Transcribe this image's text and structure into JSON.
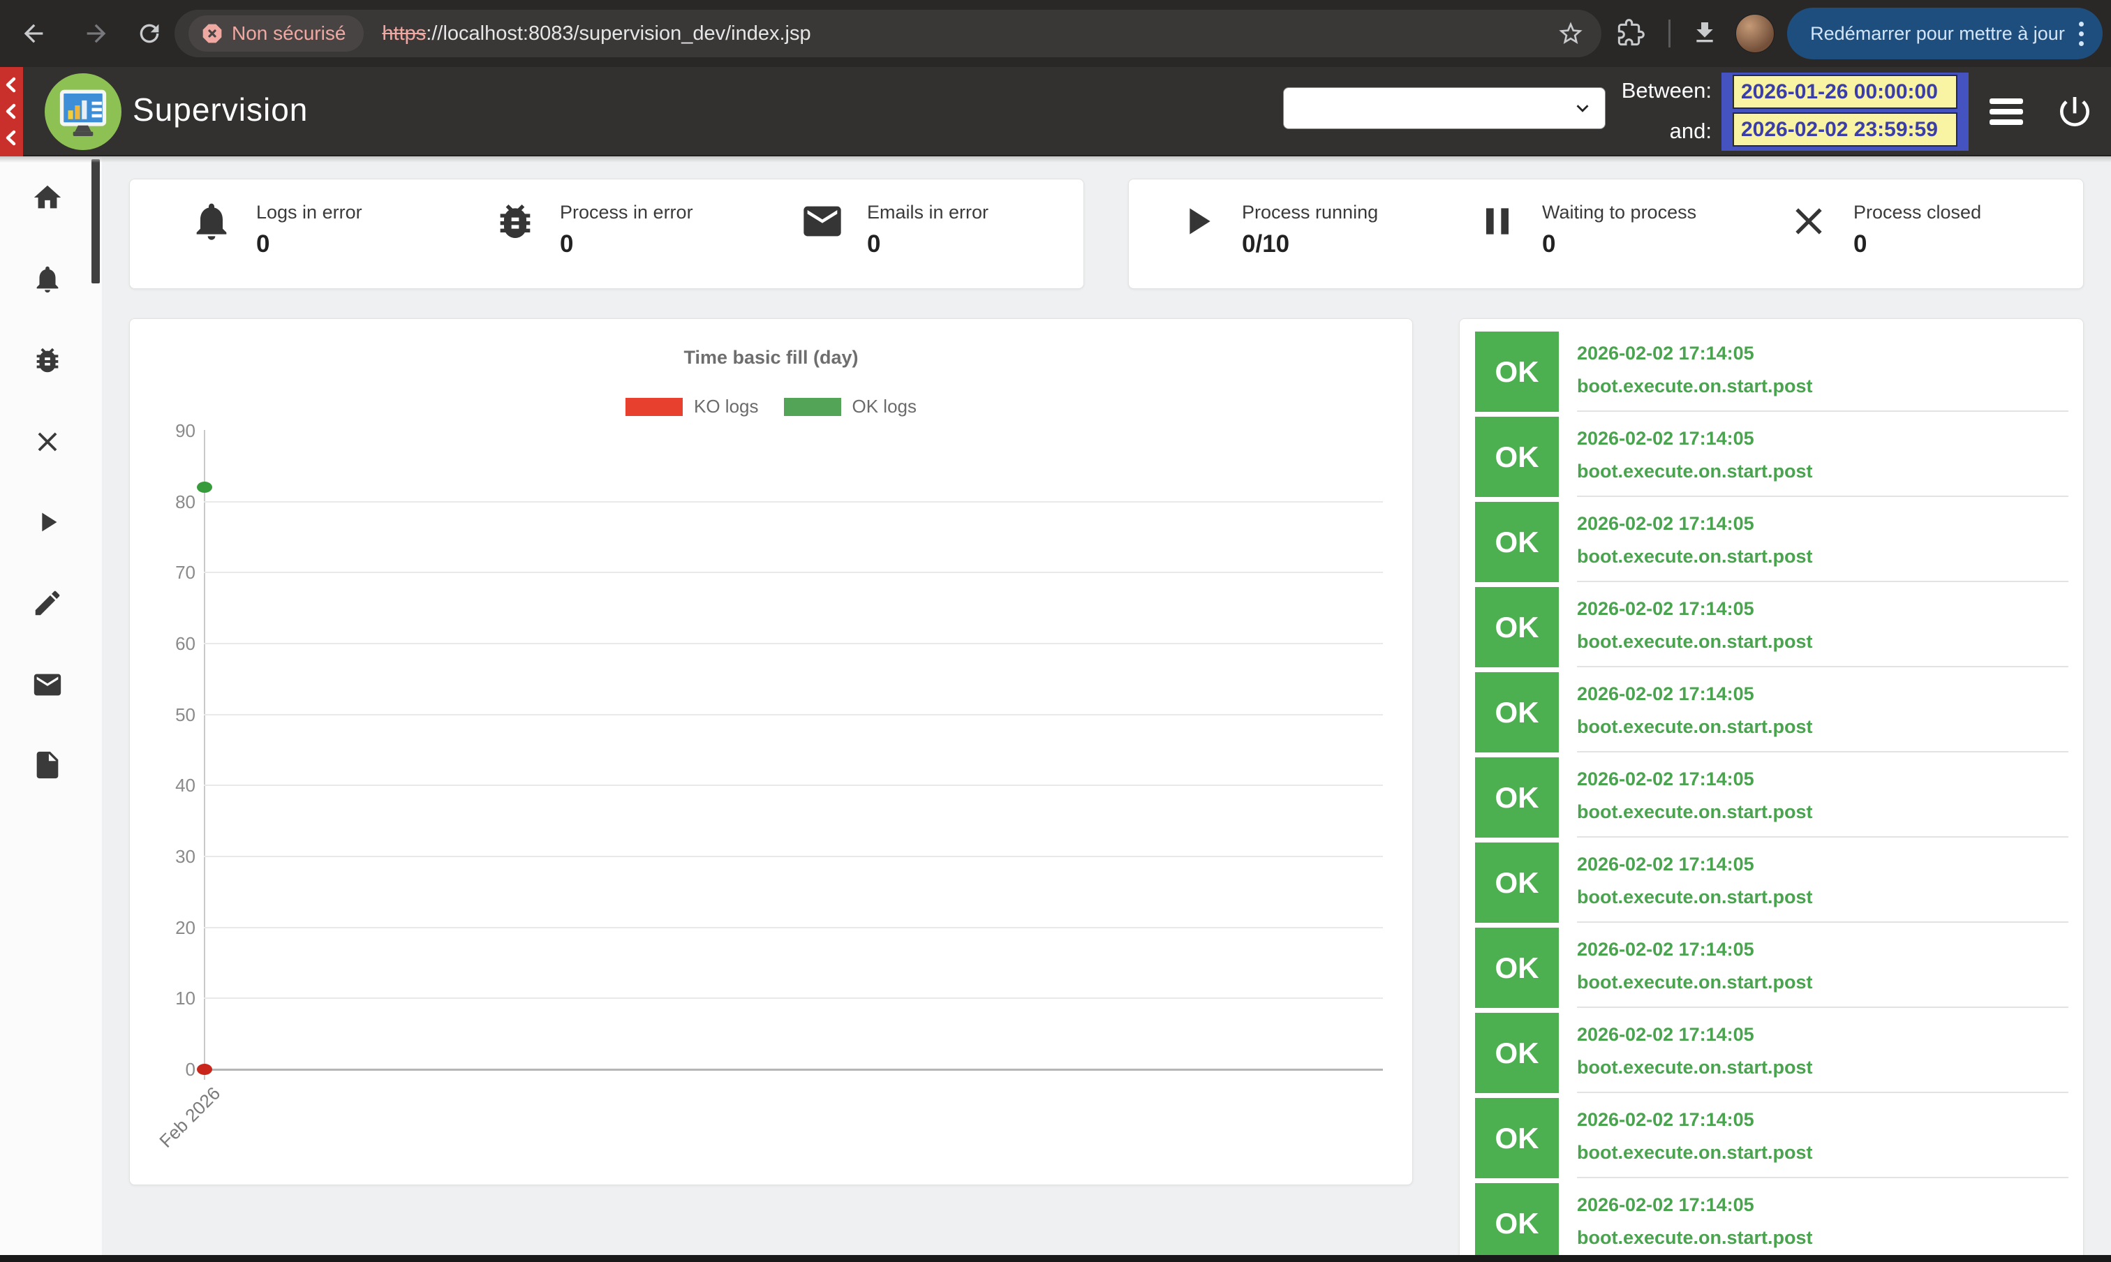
{
  "browser": {
    "security_label": "Non sécurisé",
    "url_scheme": "https",
    "url_rest": "://localhost:8083/supervision_dev/index.jsp",
    "update_button": "Redémarrer pour mettre à jour"
  },
  "header": {
    "title": "Supervision",
    "select_value": "",
    "between_label": "Between:",
    "and_label": "and:",
    "date_from": "2026-01-26 00:00:00",
    "date_to": "2026-02-02 23:59:59"
  },
  "sidebar": {
    "items": [
      {
        "name": "home",
        "icon": "home-icon"
      },
      {
        "name": "alerts",
        "icon": "bell-icon"
      },
      {
        "name": "errors",
        "icon": "bug-icon"
      },
      {
        "name": "closed",
        "icon": "close-icon"
      },
      {
        "name": "running",
        "icon": "play-icon"
      },
      {
        "name": "edit",
        "icon": "pencil-icon"
      },
      {
        "name": "emails",
        "icon": "envelope-icon"
      },
      {
        "name": "documents",
        "icon": "file-icon"
      }
    ]
  },
  "stat_cards": {
    "left": {
      "stats": [
        {
          "icon": "bell-icon",
          "label": "Logs in error",
          "value": "0"
        },
        {
          "icon": "bug-icon",
          "label": "Process in error",
          "value": "0"
        },
        {
          "icon": "envelope-icon",
          "label": "Emails in error",
          "value": "0"
        }
      ]
    },
    "right": {
      "stats": [
        {
          "icon": "play-icon",
          "label": "Process running",
          "value": "0/10"
        },
        {
          "icon": "pause-icon",
          "label": "Waiting to process",
          "value": "0"
        },
        {
          "icon": "close-icon",
          "label": "Process closed",
          "value": "0"
        }
      ]
    }
  },
  "chart_data": {
    "type": "scatter",
    "title": "Time basic fill (day)",
    "x": [
      "Feb 2026"
    ],
    "series": [
      {
        "name": "KO logs",
        "color": "#c8251b",
        "values": [
          0
        ]
      },
      {
        "name": "OK logs",
        "color": "#379b3b",
        "values": [
          82
        ]
      }
    ],
    "legend": [
      {
        "label": "KO logs",
        "color": "#e8402f"
      },
      {
        "label": "OK logs",
        "color": "#54a457"
      }
    ],
    "ylim": [
      0,
      90
    ],
    "yticks": [
      0,
      10,
      20,
      30,
      40,
      50,
      60,
      70,
      80,
      90
    ],
    "grid": true,
    "legend_position": "top-center"
  },
  "logs": {
    "rows": [
      {
        "status": "OK",
        "time": "2026-02-02 17:14:05",
        "label": "boot.execute.on.start.post"
      },
      {
        "status": "OK",
        "time": "2026-02-02 17:14:05",
        "label": "boot.execute.on.start.post"
      },
      {
        "status": "OK",
        "time": "2026-02-02 17:14:05",
        "label": "boot.execute.on.start.post"
      },
      {
        "status": "OK",
        "time": "2026-02-02 17:14:05",
        "label": "boot.execute.on.start.post"
      },
      {
        "status": "OK",
        "time": "2026-02-02 17:14:05",
        "label": "boot.execute.on.start.post"
      },
      {
        "status": "OK",
        "time": "2026-02-02 17:14:05",
        "label": "boot.execute.on.start.post"
      },
      {
        "status": "OK",
        "time": "2026-02-02 17:14:05",
        "label": "boot.execute.on.start.post"
      },
      {
        "status": "OK",
        "time": "2026-02-02 17:14:05",
        "label": "boot.execute.on.start.post"
      },
      {
        "status": "OK",
        "time": "2026-02-02 17:14:05",
        "label": "boot.execute.on.start.post"
      },
      {
        "status": "OK",
        "time": "2026-02-02 17:14:05",
        "label": "boot.execute.on.start.post"
      },
      {
        "status": "OK",
        "time": "2026-02-02 17:14:05",
        "label": "boot.execute.on.start.post"
      }
    ]
  },
  "colors": {
    "page_bg": "#eff0f1",
    "header_bg": "#333030",
    "accent_red_strip": "#c9302b",
    "ok_green": "#4caf50",
    "ko_red": "#e8402f",
    "date_input_bg": "#f9f4a4",
    "date_input_text": "#3b3ea6",
    "date_border_blue": "#4553c0",
    "update_button_bg": "#1e4e7d"
  }
}
